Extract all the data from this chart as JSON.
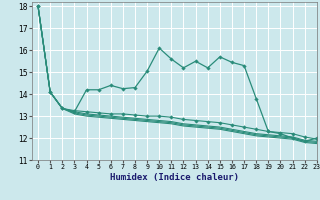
{
  "xlabel": "Humidex (Indice chaleur)",
  "xlim": [
    -0.5,
    23
  ],
  "ylim": [
    11,
    18.2
  ],
  "yticks": [
    11,
    12,
    13,
    14,
    15,
    16,
    17,
    18
  ],
  "xticks": [
    0,
    1,
    2,
    3,
    4,
    5,
    6,
    7,
    8,
    9,
    10,
    11,
    12,
    13,
    14,
    15,
    16,
    17,
    18,
    19,
    20,
    21,
    22,
    23
  ],
  "bg_color": "#cce8ec",
  "grid_color": "#ffffff",
  "line_color": "#2a8c7a",
  "line1": [
    18,
    14.1,
    13.35,
    13.2,
    14.2,
    14.2,
    14.4,
    14.25,
    14.3,
    15.05,
    16.1,
    15.6,
    15.2,
    15.5,
    15.2,
    15.7,
    15.45,
    15.3,
    13.8,
    12.3,
    12.2,
    12.0,
    11.85,
    12.0
  ],
  "line2": [
    18,
    14.1,
    13.35,
    13.25,
    13.2,
    13.15,
    13.1,
    13.1,
    13.05,
    13.0,
    13.0,
    12.95,
    12.85,
    12.8,
    12.75,
    12.7,
    12.6,
    12.5,
    12.4,
    12.3,
    12.25,
    12.2,
    12.05,
    11.95
  ],
  "line3": [
    18,
    14.1,
    13.35,
    13.2,
    13.1,
    13.05,
    13.0,
    12.95,
    12.9,
    12.85,
    12.8,
    12.75,
    12.65,
    12.6,
    12.55,
    12.5,
    12.4,
    12.3,
    12.2,
    12.15,
    12.1,
    12.05,
    11.9,
    11.85
  ],
  "line4": [
    18,
    14.1,
    13.35,
    13.15,
    13.05,
    13.0,
    12.95,
    12.9,
    12.85,
    12.8,
    12.75,
    12.7,
    12.6,
    12.55,
    12.5,
    12.45,
    12.35,
    12.25,
    12.15,
    12.1,
    12.05,
    12.0,
    11.85,
    11.8
  ],
  "line5": [
    18,
    14.1,
    13.35,
    13.1,
    13.0,
    12.95,
    12.9,
    12.85,
    12.8,
    12.75,
    12.7,
    12.65,
    12.55,
    12.5,
    12.45,
    12.4,
    12.3,
    12.2,
    12.1,
    12.05,
    12.0,
    11.95,
    11.8,
    11.75
  ]
}
